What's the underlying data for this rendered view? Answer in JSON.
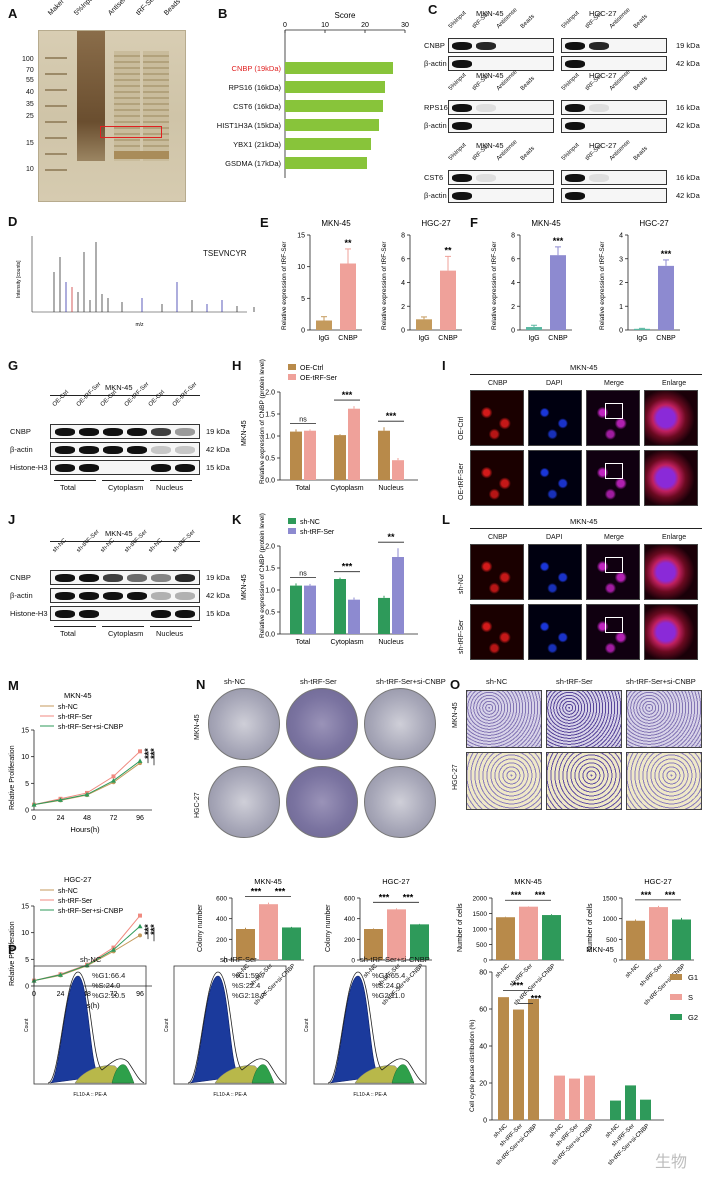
{
  "panel_labels": [
    "A",
    "B",
    "C",
    "D",
    "E",
    "F",
    "G",
    "H",
    "I",
    "J",
    "K",
    "L",
    "M",
    "N",
    "O",
    "P"
  ],
  "gel": {
    "lanes": [
      "Maker",
      "5%Input",
      "Antisense",
      "tRF-Ser",
      "Beads"
    ],
    "ladder": [
      "100",
      "70",
      "55",
      "40",
      "35",
      "25",
      "15",
      "10"
    ]
  },
  "chart_data": [
    {
      "id": "B",
      "type": "bar",
      "title": "Score",
      "categories": [
        "CNBP (19kDa)",
        "RPS16 (16kDa)",
        "CST6 (16kDa)",
        "HIST1H3A (15kDa)",
        "YBX1 (21kDa)",
        "GSDMA (17kDa)"
      ],
      "values": [
        27,
        25,
        24.5,
        23.5,
        21.5,
        20.5
      ],
      "xlim": [
        0,
        30
      ],
      "xticks": [
        "0",
        "10",
        "20",
        "30"
      ],
      "color": "#88c43a",
      "highlight": "#e02020"
    },
    {
      "id": "E1",
      "type": "bar",
      "title": "MKN-45",
      "ylabel": "Relative expression of tRF-Ser",
      "categories": [
        "IgG",
        "CNBP"
      ],
      "values": [
        1.5,
        10.5
      ],
      "errors": [
        0.6,
        2.3
      ],
      "ylim": [
        0,
        15
      ],
      "yticks": [
        "0",
        "5",
        "10",
        "15"
      ],
      "sig": "**",
      "color": "#efa19a",
      "color_ctrl": "#c49a5c"
    },
    {
      "id": "E2",
      "type": "bar",
      "title": "HGC-27",
      "ylabel": "Relative expression of tRF-Ser",
      "categories": [
        "IgG",
        "CNBP"
      ],
      "values": [
        0.9,
        5
      ],
      "errors": [
        0.2,
        1.2
      ],
      "ylim": [
        0,
        8
      ],
      "yticks": [
        "0",
        "2",
        "4",
        "6",
        "8"
      ],
      "sig": "**",
      "color": "#efa19a",
      "color_ctrl": "#c49a5c"
    },
    {
      "id": "F1",
      "type": "bar",
      "title": "MKN-45",
      "ylabel": "Relative expression of tRF-Ser",
      "categories": [
        "IgG",
        "CNBP"
      ],
      "values": [
        0.25,
        6.3
      ],
      "errors": [
        0.15,
        0.7
      ],
      "ylim": [
        0,
        8
      ],
      "yticks": [
        "0",
        "2",
        "4",
        "6",
        "8"
      ],
      "sig": "***",
      "color": "#8d8ad0",
      "color_ctrl": "#5ab7a1"
    },
    {
      "id": "F2",
      "type": "bar",
      "title": "HGC-27",
      "ylabel": "Relative expression of tRF-Ser",
      "categories": [
        "IgG",
        "CNBP"
      ],
      "values": [
        0.05,
        2.7
      ],
      "errors": [
        0.02,
        0.25
      ],
      "ylim": [
        0,
        4
      ],
      "yticks": [
        "0",
        "1",
        "2",
        "3",
        "4"
      ],
      "sig": "***",
      "color": "#8d8ad0",
      "color_ctrl": "#5ab7a1"
    },
    {
      "id": "H",
      "type": "bar",
      "ylabel": "Relative expression of CNBP (protein level)",
      "side_label": "MKN-45",
      "categories": [
        "Total",
        "Cytoplasm",
        "Nucleus"
      ],
      "series": [
        {
          "name": "OE-Ctrl",
          "values": [
            1.1,
            1.02,
            1.12
          ],
          "errors": [
            0.05,
            0.02,
            0.08
          ],
          "color": "#b88a4a"
        },
        {
          "name": "OE-tRF-Ser",
          "values": [
            1.12,
            1.62,
            0.45
          ],
          "errors": [
            0.03,
            0.06,
            0.05
          ],
          "color": "#efa19a"
        }
      ],
      "sig": [
        "ns",
        "***",
        "***"
      ],
      "ylim": [
        0,
        2.0
      ],
      "yticks": [
        "0.0",
        "0.5",
        "1.0",
        "1.5",
        "2.0"
      ]
    },
    {
      "id": "K",
      "type": "bar",
      "ylabel": "Relative expression of CNBP (protein level)",
      "side_label": "MKN-45",
      "categories": [
        "Total",
        "Cytoplasm",
        "Nucleus"
      ],
      "series": [
        {
          "name": "sh-NC",
          "values": [
            1.1,
            1.25,
            0.82
          ],
          "errors": [
            0.05,
            0.03,
            0.05
          ],
          "color": "#2e9a5a"
        },
        {
          "name": "sh-tRF-Ser",
          "values": [
            1.1,
            0.78,
            1.75
          ],
          "errors": [
            0.04,
            0.05,
            0.2
          ],
          "color": "#8d8ad0"
        }
      ],
      "sig": [
        "ns",
        "***",
        "**"
      ],
      "ylim": [
        0,
        2.0
      ],
      "yticks": [
        "0.0",
        "0.5",
        "1.0",
        "1.5",
        "2.0"
      ]
    },
    {
      "id": "M1",
      "type": "line",
      "title": "MKN-45",
      "ylabel": "Relative Proliferation",
      "xlabel": "Hours(h)",
      "x": [
        0,
        24,
        48,
        72,
        96
      ],
      "series": [
        {
          "name": "sh-NC",
          "values": [
            1,
            1.8,
            2.8,
            5.2,
            8.8
          ],
          "color": "#c49a5c",
          "marker": "circle"
        },
        {
          "name": "sh-tRF-Ser",
          "values": [
            1,
            2.1,
            3.2,
            6.3,
            11.0
          ],
          "color": "#f08a80",
          "marker": "square"
        },
        {
          "name": "sh-tRF-Ser+si-CNBP",
          "values": [
            1,
            1.9,
            2.9,
            5.5,
            9.2
          ],
          "color": "#2e9a5a",
          "marker": "triangle"
        }
      ],
      "ylim": [
        0,
        15
      ],
      "yticks": [
        "0",
        "5",
        "10",
        "15"
      ],
      "xticks": [
        "0",
        "24",
        "48",
        "72",
        "96"
      ],
      "sig": [
        "***",
        "***"
      ]
    },
    {
      "id": "M2",
      "type": "line",
      "title": "HGC-27",
      "ylabel": "Relative Proliferation",
      "xlabel": "Hours(h)",
      "x": [
        0,
        24,
        48,
        72,
        96
      ],
      "series": [
        {
          "name": "sh-NC",
          "values": [
            1,
            2,
            3.8,
            6.5,
            9.5
          ],
          "color": "#c49a5c",
          "marker": "circle"
        },
        {
          "name": "sh-tRF-Ser",
          "values": [
            1,
            2.2,
            4.0,
            7.2,
            13.2
          ],
          "color": "#f08a80",
          "marker": "square"
        },
        {
          "name": "sh-tRF-Ser+si-CNBP",
          "values": [
            1,
            2.1,
            3.9,
            6.8,
            11.2
          ],
          "color": "#2e9a5a",
          "marker": "triangle"
        }
      ],
      "ylim": [
        0,
        15
      ],
      "yticks": [
        "0",
        "5",
        "10",
        "15"
      ],
      "xticks": [
        "0",
        "24",
        "48",
        "72",
        "96"
      ],
      "sig": [
        "***",
        "***"
      ]
    },
    {
      "id": "N1",
      "type": "bar",
      "title": "MKN-45",
      "ylabel": "Colony number",
      "categories": [
        "sh-NC",
        "sh-tRF-Ser",
        "sh-tRF-Ser+si-CNBP"
      ],
      "values": [
        300,
        540,
        315
      ],
      "errors": [
        12,
        15,
        5
      ],
      "colors": [
        "#b88a4a",
        "#efa19a",
        "#2e9a5a"
      ],
      "ylim": [
        0,
        600
      ],
      "yticks": [
        "0",
        "200",
        "400",
        "600"
      ],
      "sig": [
        "***",
        "***"
      ]
    },
    {
      "id": "N2",
      "type": "bar",
      "title": "HGC-27",
      "ylabel": "Colony number",
      "categories": [
        "sh-NC",
        "sh-tRF-Ser",
        "sh-tRF-Ser+si-CNBP"
      ],
      "values": [
        300,
        490,
        345
      ],
      "errors": [
        5,
        10,
        5
      ],
      "colors": [
        "#b88a4a",
        "#efa19a",
        "#2e9a5a"
      ],
      "ylim": [
        0,
        600
      ],
      "yticks": [
        "0",
        "200",
        "400",
        "600"
      ],
      "sig": [
        "***",
        "***"
      ]
    },
    {
      "id": "O1",
      "type": "bar",
      "title": "MKN-45",
      "ylabel": "Number of cells",
      "categories": [
        "sh-NC",
        "sh-tRF-Ser",
        "sh-tRF-Ser+si-CNBP"
      ],
      "values": [
        1380,
        1720,
        1450
      ],
      "errors": [
        15,
        15,
        25
      ],
      "colors": [
        "#b88a4a",
        "#efa19a",
        "#2e9a5a"
      ],
      "ylim": [
        0,
        2000
      ],
      "yticks": [
        "0",
        "500",
        "1000",
        "1500",
        "2000"
      ],
      "sig": [
        "***",
        "***"
      ]
    },
    {
      "id": "O2",
      "type": "bar",
      "title": "HGC-27",
      "ylabel": "Number of cells",
      "categories": [
        "sh-NC",
        "sh-tRF-Ser",
        "sh-tRF-Ser+si-CNBP"
      ],
      "values": [
        950,
        1280,
        980
      ],
      "errors": [
        30,
        30,
        40
      ],
      "colors": [
        "#b88a4a",
        "#efa19a",
        "#2e9a5a"
      ],
      "ylim": [
        0,
        1500
      ],
      "yticks": [
        "0",
        "500",
        "1000",
        "1500"
      ],
      "sig": [
        "***",
        "***"
      ]
    },
    {
      "id": "P",
      "type": "bar",
      "title": "MKN-45",
      "ylabel": "Cell cycle phase distribution (%)",
      "categories": [
        "sh-NC",
        "sh-tRF-Ser",
        "sh-tRF-Ser+si-CNBP"
      ],
      "series": [
        {
          "name": "G1",
          "values": [
            66.4,
            59.7,
            65.4
          ],
          "color": "#b88a4a"
        },
        {
          "name": "S",
          "values": [
            24.0,
            22.4,
            24.0
          ],
          "color": "#efa19a"
        },
        {
          "name": "G2",
          "values": [
            10.5,
            18.7,
            11.0
          ],
          "color": "#2e9a5a"
        }
      ],
      "ylim": [
        0,
        80
      ],
      "yticks": [
        "0",
        "20",
        "40",
        "60",
        "80"
      ],
      "sig": [
        "***",
        "***"
      ]
    }
  ],
  "blotC": {
    "sets": [
      {
        "cells": [
          "MKN-45",
          "HGC-27"
        ],
        "lanes": [
          "5%Input",
          "tRF-Ser",
          "Antisense",
          "Beads"
        ],
        "rows": [
          {
            "name": "CNBP",
            "kda": "19 kDa"
          },
          {
            "name": "β-actin",
            "kda": "42 kDa"
          }
        ]
      },
      {
        "cells": [
          "MKN-45",
          "HGC-27"
        ],
        "lanes": [
          "5%Input",
          "tRF-Ser",
          "Antisense",
          "Beads"
        ],
        "rows": [
          {
            "name": "RPS16",
            "kda": "16 kDa"
          },
          {
            "name": "β-actin",
            "kda": "42 kDa"
          }
        ]
      },
      {
        "cells": [
          "MKN-45",
          "HGC-27"
        ],
        "lanes": [
          "5%Input",
          "tRF-Ser",
          "Antisense",
          "Beads"
        ],
        "rows": [
          {
            "name": "CST6",
            "kda": "16 kDa"
          },
          {
            "name": "β-actin",
            "kda": "42 kDa"
          }
        ]
      }
    ]
  },
  "ms": {
    "peptide": "TSEVNCYR",
    "ylabel": "Intensity [counts]",
    "xlabel": "m/z"
  },
  "blotG": {
    "title": "MKN-45",
    "lanes": [
      "OE-Ctrl",
      "OE-tRF-Ser",
      "OE-Ctrl",
      "OE-tRF-Ser",
      "OE-Ctrl",
      "OE-tRF-Ser"
    ],
    "rows": [
      {
        "name": "CNBP",
        "kda": "19 kDa"
      },
      {
        "name": "β-actin",
        "kda": "42 kDa"
      },
      {
        "name": "Histone-H3",
        "kda": "15 kDa"
      }
    ],
    "groups": [
      "Total",
      "Cytoplasm",
      "Nucleus"
    ]
  },
  "blotJ": {
    "title": "MKN-45",
    "lanes": [
      "sh-NC",
      "sh-tRF-Ser",
      "sh-NC",
      "sh-tRF-Ser",
      "sh-NC",
      "sh-tRF-Ser"
    ],
    "rows": [
      {
        "name": "CNBP",
        "kda": "19 kDa"
      },
      {
        "name": "β-actin",
        "kda": "42 kDa"
      },
      {
        "name": "Histone-H3",
        "kda": "15 kDa"
      }
    ],
    "groups": [
      "Total",
      "Cytoplasm",
      "Nucleus"
    ]
  },
  "ifI": {
    "title": "MKN-45",
    "cols": [
      "CNBP",
      "DAPI",
      "Merge",
      "Enlarge"
    ],
    "rows": [
      "OE-Ctrl",
      "OE-tRF-Ser"
    ]
  },
  "ifL": {
    "title": "MKN-45",
    "cols": [
      "CNBP",
      "DAPI",
      "Merge",
      "Enlarge"
    ],
    "rows": [
      "sh-NC",
      "sh-tRF-Ser"
    ]
  },
  "colony": {
    "cols": [
      "sh-NC",
      "sh-tRF-Ser",
      "sh-tRF-Ser+si-CNBP"
    ],
    "rows": [
      "MKN-45",
      "HGC-27"
    ]
  },
  "transwell": {
    "cols": [
      "sh-NC",
      "sh-tRF-Ser",
      "sh-tRF-Ser+si-CNBP"
    ],
    "rows": [
      "MKN-45",
      "HGC-27"
    ]
  },
  "flow": {
    "panels": [
      {
        "title": "sh-NC",
        "g1": "%G1:66.4",
        "s": "%S:24.0",
        "g2": "%G2:10.5"
      },
      {
        "title": "sh-tRF-Ser",
        "g1": "%G1:59.7",
        "s": "%S:22.4",
        "g2": "%G2:18.7"
      },
      {
        "title": "sh-tRF-Ser+si-CNBP",
        "g1": "%G1:65.4",
        "s": "%S:24.0",
        "g2": "%G2:11.0"
      }
    ],
    "xlabel": "FL10-A :: PE-A",
    "ylabel": "Count"
  },
  "watermark": "生物"
}
